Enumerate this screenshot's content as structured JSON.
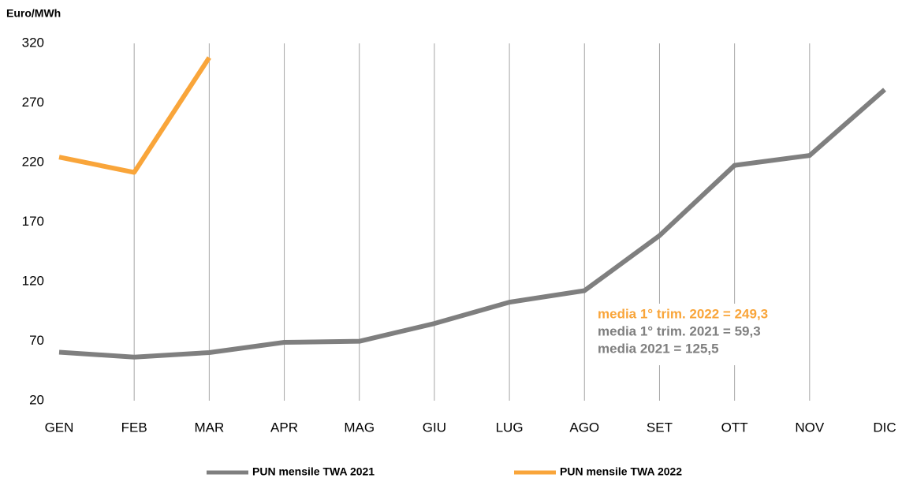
{
  "chart_data": {
    "type": "line",
    "y_axis_label": "Euro/MWh",
    "categories": [
      "GEN",
      "FEB",
      "MAR",
      "APR",
      "MAG",
      "GIU",
      "LUG",
      "AGO",
      "SET",
      "OTT",
      "NOV",
      "DIC"
    ],
    "series": [
      {
        "name": "PUN mensile TWA  2021",
        "color": "#7f7f7f",
        "values": [
          60.7,
          56.6,
          60.4,
          69.0,
          69.9,
          84.8,
          102.7,
          112.4,
          158.6,
          217.6,
          225.9,
          281.2
        ]
      },
      {
        "name": "PUN mensile TWA  2022",
        "color": "#f9a53a",
        "values": [
          224.5,
          211.7,
          308.1,
          null,
          null,
          null,
          null,
          null,
          null,
          null,
          null,
          null
        ]
      }
    ],
    "ylim": [
      20,
      320
    ],
    "yticks": [
      20,
      70,
      120,
      170,
      220,
      270,
      320
    ],
    "grid": "vertical",
    "annotations": [
      {
        "text": "media 1° trim. 2022 = 249,3",
        "color": "#f9a53a"
      },
      {
        "text": "media 1° trim. 2021 = 59,3",
        "color": "#7f7f7f"
      },
      {
        "text": "media 2021 = 125,5",
        "color": "#7f7f7f"
      }
    ],
    "legend": "bottom"
  }
}
